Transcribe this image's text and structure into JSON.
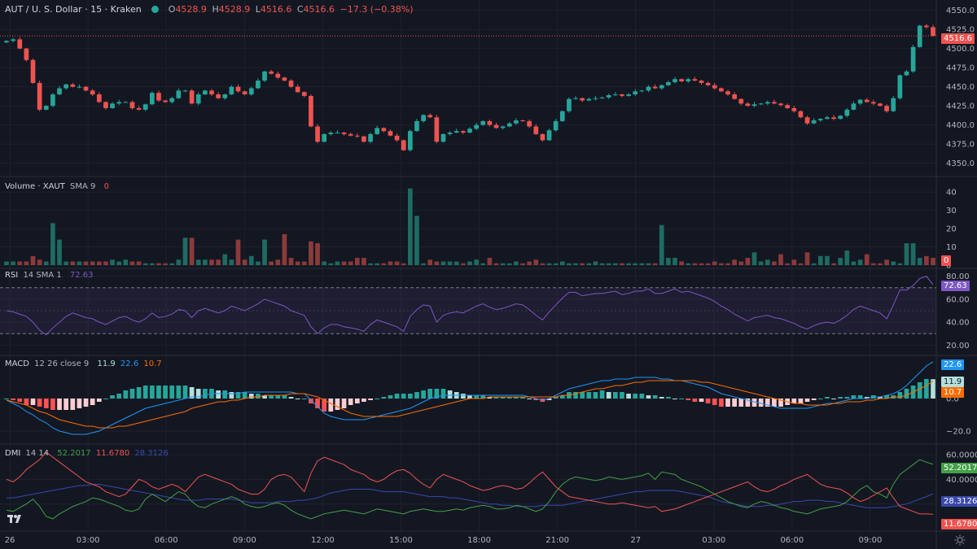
{
  "header": {
    "symbol": "AUT / U. S. Dollar · 15 · Kraken",
    "o_label": "O",
    "o": "4528.9",
    "h_label": "H",
    "h": "4528.9",
    "l_label": "L",
    "l": "4516.6",
    "c_label": "C",
    "c": "4516.6",
    "change": "−17.3 (−0.38%)",
    "status_color": "#26a69a"
  },
  "colors": {
    "up": "#26a69a",
    "down": "#ef5350",
    "bg": "#131722",
    "grid": "#1e222d",
    "axis_text": "#b2b5be"
  },
  "volume_legend": {
    "name": "Volume · XAUT",
    "sma": "SMA 9",
    "value": "0"
  },
  "rsi_legend": {
    "name": "RSI",
    "params": "14 SMA 1",
    "value": "72.63"
  },
  "macd_legend": {
    "name": "MACD",
    "params": "12 26 close 9",
    "v1": "11.9",
    "v2": "22.6",
    "v3": "10.7"
  },
  "dmi_legend": {
    "name": "DMI",
    "params": "14 14",
    "v1": "52.2017",
    "v2": "11.6780",
    "v3": "28.3126"
  },
  "price_tag": "4516.6",
  "volume_tag": "0",
  "rsi_tag": "72.63",
  "macd_tags": [
    "22.6",
    "11.9",
    "10.7"
  ],
  "dmi_tags": [
    "52.2017",
    "28.3126",
    "11.6780"
  ],
  "chart_data": {
    "type": "candlestick",
    "x_ticks": [
      "26",
      "03:00",
      "06:00",
      "09:00",
      "12:00",
      "15:00",
      "18:00",
      "21:00",
      "27",
      "03:00",
      "06:00",
      "09:00"
    ],
    "price_axis": {
      "ticks": [
        "4550.0",
        "4525.0",
        "4500.0",
        "4475.0",
        "4450.0",
        "4425.0",
        "4400.0",
        "4375.0",
        "4350.0"
      ],
      "range": [
        4340,
        4555
      ]
    },
    "closes": [
      4510,
      4512,
      4500,
      4485,
      4455,
      4420,
      4425,
      4440,
      4448,
      4453,
      4450,
      4450,
      4445,
      4440,
      4430,
      4422,
      4428,
      4430,
      4430,
      4422,
      4420,
      4427,
      4442,
      4432,
      4430,
      4435,
      4445,
      4445,
      4428,
      4440,
      4445,
      4440,
      4435,
      4440,
      4450,
      4444,
      4440,
      4448,
      4458,
      4470,
      4467,
      4462,
      4458,
      4450,
      4443,
      4438,
      4398,
      4378,
      4388,
      4390,
      4390,
      4388,
      4386,
      4385,
      4378,
      4388,
      4396,
      4392,
      4386,
      4380,
      4367,
      4392,
      4405,
      4413,
      4410,
      4378,
      4388,
      4390,
      4392,
      4390,
      4395,
      4400,
      4405,
      4400,
      4396,
      4398,
      4402,
      4406,
      4405,
      4398,
      4388,
      4380,
      4393,
      4405,
      4418,
      4434,
      4435,
      4432,
      4434,
      4435,
      4436,
      4439,
      4440,
      4438,
      4440,
      4444,
      4445,
      4450,
      4448,
      4452,
      4456,
      4460,
      4457,
      4460,
      4458,
      4455,
      4452,
      4448,
      4444,
      4440,
      4434,
      4428,
      4425,
      4427,
      4428,
      4430,
      4428,
      4426,
      4422,
      4418,
      4410,
      4402,
      4406,
      4408,
      4410,
      4408,
      4412,
      4420,
      4428,
      4433,
      4430,
      4428,
      4425,
      4418,
      4435,
      4465,
      4470,
      4502,
      4530,
      4528,
      4516.6
    ],
    "volume_axis": {
      "ticks": [
        "40",
        "30",
        "20",
        "10",
        "0"
      ],
      "range": [
        0,
        45
      ]
    },
    "volumes": [
      2,
      2,
      2,
      2,
      5,
      3,
      2,
      23,
      14,
      2,
      2,
      2,
      2,
      2,
      2,
      2,
      3,
      2,
      3,
      2,
      2,
      1,
      1,
      1,
      1,
      1,
      3,
      15,
      15,
      3,
      3,
      3,
      3,
      6,
      3,
      14,
      3,
      5,
      2,
      14,
      2,
      3,
      17,
      4,
      2,
      2,
      13,
      12,
      2,
      1,
      2,
      2,
      2,
      4,
      4,
      1,
      1,
      1,
      2,
      2,
      1,
      42,
      27,
      1,
      3,
      2,
      2,
      2,
      2,
      1,
      2,
      3,
      1,
      4,
      1,
      1,
      1,
      2,
      1,
      2,
      3,
      1,
      1,
      1,
      2,
      1,
      1,
      1,
      1,
      2,
      1,
      1,
      1,
      1,
      1,
      1,
      1,
      1,
      1,
      22,
      4,
      4,
      2,
      1,
      1,
      1,
      1,
      2,
      1,
      1,
      3,
      2,
      4,
      7,
      2,
      3,
      2,
      6,
      1,
      3,
      1,
      7,
      1,
      5,
      5,
      1,
      4,
      8,
      2,
      3,
      6,
      1,
      1,
      3,
      2,
      1,
      12,
      12,
      4,
      5,
      4
    ],
    "rsi_axis": {
      "ticks": [
        "80.00",
        "60.00",
        "40.00",
        "20.00"
      ],
      "range": [
        16,
        84
      ],
      "bands": [
        30,
        70
      ]
    },
    "rsi": [
      50,
      49,
      47,
      45,
      40,
      33,
      29,
      35,
      40,
      45,
      48,
      46,
      44,
      43,
      40,
      38,
      41,
      44,
      45,
      42,
      40,
      43,
      48,
      44,
      45,
      47,
      51,
      50,
      44,
      50,
      52,
      50,
      48,
      50,
      54,
      52,
      50,
      53,
      56,
      60,
      58,
      56,
      54,
      50,
      48,
      46,
      36,
      30,
      35,
      38,
      38,
      36,
      35,
      34,
      32,
      38,
      42,
      40,
      38,
      36,
      32,
      45,
      51,
      55,
      54,
      40,
      46,
      48,
      49,
      48,
      51,
      54,
      56,
      53,
      51,
      52,
      54,
      56,
      55,
      51,
      46,
      42,
      49,
      55,
      61,
      66,
      66,
      63,
      64,
      65,
      65,
      66,
      67,
      64,
      65,
      67,
      67,
      69,
      65,
      65,
      67,
      69,
      66,
      67,
      65,
      63,
      61,
      58,
      54,
      51,
      47,
      44,
      41,
      44,
      45,
      46,
      44,
      43,
      41,
      39,
      36,
      34,
      37,
      39,
      40,
      39,
      42,
      46,
      51,
      54,
      52,
      50,
      48,
      43,
      55,
      68,
      68,
      72,
      78,
      80,
      72.63
    ],
    "macd_axis": {
      "ticks": [
        "0.0",
        "−20.0"
      ],
      "range": [
        -25,
        25
      ]
    },
    "macd": [
      -1,
      -3,
      -5,
      -8,
      -10,
      -13,
      -15,
      -18,
      -20,
      -21,
      -22,
      -22,
      -22,
      -21,
      -20,
      -18,
      -16,
      -14,
      -12,
      -10,
      -8,
      -6,
      -5,
      -4,
      -3,
      -2,
      -1,
      0,
      1,
      1,
      2,
      3,
      3,
      3,
      3,
      3,
      4,
      4,
      4,
      4,
      4,
      4,
      4,
      4,
      3,
      3,
      -1,
      -5,
      -9,
      -11,
      -12,
      -13,
      -13,
      -13,
      -13,
      -12,
      -11,
      -10,
      -9,
      -8,
      -7,
      -6,
      -4,
      -2,
      0,
      1,
      2,
      2,
      2,
      2,
      2,
      2,
      2,
      2,
      2,
      2,
      2,
      2,
      2,
      1,
      0,
      -1,
      0,
      2,
      4,
      6,
      7,
      8,
      9,
      10,
      11,
      11,
      12,
      12,
      12,
      13,
      13,
      13,
      13,
      12,
      12,
      11,
      11,
      10,
      9,
      8,
      7,
      5,
      3,
      2,
      1,
      0,
      -1,
      -2,
      -3,
      -4,
      -5,
      -6,
      -6,
      -6,
      -6,
      -6,
      -5,
      -4,
      -3,
      -3,
      -2,
      -1,
      0,
      0,
      0,
      1,
      1,
      2,
      3,
      5,
      8,
      12,
      16,
      20,
      22.6
    ],
    "signal": [
      -1,
      -2,
      -3,
      -4,
      -6,
      -8,
      -9,
      -11,
      -13,
      -14,
      -15,
      -16,
      -17,
      -17,
      -18,
      -18,
      -18,
      -17,
      -17,
      -16,
      -15,
      -14,
      -13,
      -12,
      -11,
      -10,
      -9,
      -8,
      -6,
      -5,
      -4,
      -3,
      -2,
      -2,
      -1,
      -1,
      0,
      1,
      1,
      2,
      2,
      2,
      2,
      3,
      3,
      3,
      2,
      1,
      -1,
      -3,
      -5,
      -7,
      -9,
      -10,
      -11,
      -11,
      -11,
      -11,
      -11,
      -11,
      -10,
      -9,
      -8,
      -7,
      -6,
      -5,
      -4,
      -3,
      -2,
      -1,
      0,
      0,
      0,
      1,
      1,
      1,
      1,
      1,
      1,
      1,
      1,
      1,
      1,
      1,
      2,
      2,
      3,
      4,
      5,
      6,
      6,
      7,
      8,
      8,
      9,
      10,
      10,
      11,
      11,
      11,
      11,
      11,
      11,
      11,
      11,
      10,
      10,
      9,
      8,
      7,
      6,
      5,
      4,
      3,
      2,
      1,
      0,
      -1,
      -2,
      -3,
      -3,
      -4,
      -4,
      -4,
      -4,
      -3,
      -3,
      -2,
      -2,
      -2,
      -1,
      -1,
      0,
      0,
      1,
      1,
      2,
      4,
      6,
      8,
      10.7
    ],
    "histogram": [
      0,
      -1,
      -2,
      -4,
      -4,
      -5,
      -6,
      -7,
      -7,
      -7,
      -7,
      -6,
      -5,
      -4,
      -2,
      0,
      2,
      3,
      5,
      6,
      7,
      8,
      8,
      8,
      8,
      8,
      8,
      8,
      7,
      6,
      6,
      6,
      5,
      5,
      4,
      4,
      4,
      3,
      3,
      2,
      2,
      2,
      2,
      1,
      0,
      0,
      -3,
      -6,
      -8,
      -8,
      -7,
      -6,
      -4,
      -3,
      -2,
      -1,
      0,
      1,
      2,
      3,
      3,
      3,
      4,
      5,
      6,
      6,
      6,
      5,
      4,
      3,
      2,
      2,
      2,
      1,
      1,
      1,
      1,
      1,
      1,
      0,
      -1,
      -2,
      -1,
      1,
      2,
      4,
      4,
      4,
      4,
      4,
      5,
      4,
      4,
      4,
      3,
      3,
      3,
      2,
      2,
      1,
      1,
      0,
      0,
      -1,
      -2,
      -2,
      -3,
      -4,
      -5,
      -5,
      -5,
      -5,
      -5,
      -5,
      -5,
      -5,
      -5,
      -5,
      -4,
      -3,
      -3,
      -2,
      -1,
      0,
      1,
      0,
      1,
      1,
      2,
      2,
      1,
      2,
      1,
      2,
      2,
      4,
      6,
      8,
      10,
      12,
      11.9
    ],
    "dmi_axis": {
      "ticks": [
        "60.0000",
        "40.0000",
        "20.0000"
      ],
      "range": [
        0,
        66
      ]
    },
    "plus_di": [
      15,
      14,
      17,
      20,
      24,
      18,
      10,
      8,
      12,
      15,
      18,
      20,
      22,
      25,
      24,
      22,
      20,
      18,
      15,
      14,
      16,
      24,
      28,
      25,
      22,
      26,
      30,
      28,
      22,
      18,
      17,
      20,
      22,
      24,
      26,
      24,
      20,
      18,
      17,
      18,
      20,
      21,
      19,
      15,
      12,
      10,
      8,
      10,
      12,
      13,
      14,
      15,
      14,
      13,
      12,
      14,
      16,
      15,
      14,
      13,
      12,
      14,
      15,
      16,
      15,
      14,
      14,
      15,
      16,
      15,
      17,
      18,
      19,
      18,
      16,
      16,
      17,
      19,
      18,
      16,
      14,
      16,
      22,
      30,
      36,
      40,
      42,
      41,
      40,
      39,
      40,
      42,
      41,
      40,
      41,
      42,
      43,
      45,
      40,
      46,
      45,
      44,
      40,
      38,
      36,
      34,
      31,
      28,
      25,
      22,
      20,
      18,
      17,
      20,
      22,
      21,
      19,
      17,
      16,
      14,
      13,
      12,
      14,
      16,
      17,
      18,
      19,
      22,
      27,
      32,
      35,
      30,
      28,
      25,
      36,
      44,
      48,
      52,
      56,
      54,
      52.2017
    ],
    "minus_di": [
      40,
      38,
      42,
      48,
      52,
      56,
      62,
      58,
      54,
      50,
      46,
      42,
      38,
      36,
      34,
      30,
      28,
      26,
      28,
      34,
      40,
      38,
      34,
      32,
      34,
      36,
      34,
      30,
      36,
      42,
      44,
      42,
      40,
      38,
      36,
      32,
      30,
      28,
      28,
      32,
      40,
      43,
      44,
      42,
      36,
      30,
      45,
      55,
      58,
      56,
      54,
      52,
      48,
      46,
      44,
      40,
      38,
      40,
      44,
      47,
      48,
      45,
      40,
      36,
      33,
      40,
      44,
      42,
      40,
      38,
      35,
      33,
      31,
      32,
      34,
      35,
      34,
      32,
      33,
      37,
      42,
      46,
      40,
      34,
      30,
      26,
      25,
      24,
      23,
      22,
      21,
      20,
      20,
      21,
      20,
      19,
      18,
      17,
      18,
      14,
      15,
      16,
      18,
      20,
      22,
      24,
      26,
      28,
      30,
      32,
      34,
      36,
      38,
      34,
      31,
      30,
      32,
      35,
      37,
      40,
      42,
      44,
      40,
      36,
      34,
      33,
      32,
      29,
      25,
      22,
      24,
      27,
      30,
      33,
      25,
      18,
      16,
      14,
      12,
      12,
      11.678
    ],
    "adx": [
      25,
      25,
      26,
      27,
      28,
      29,
      30,
      31,
      32,
      33,
      34,
      35,
      35,
      36,
      36,
      35,
      34,
      33,
      32,
      31,
      30,
      29,
      28,
      27,
      26,
      25,
      24,
      23,
      23,
      23,
      24,
      24,
      24,
      24,
      24,
      23,
      22,
      21,
      21,
      21,
      21,
      22,
      22,
      22,
      23,
      23,
      24,
      25,
      27,
      29,
      30,
      31,
      32,
      32,
      32,
      32,
      31,
      30,
      30,
      30,
      30,
      29,
      28,
      27,
      26,
      26,
      26,
      25,
      25,
      24,
      23,
      22,
      21,
      20,
      20,
      19,
      19,
      18,
      18,
      18,
      18,
      19,
      19,
      19,
      19,
      20,
      21,
      22,
      23,
      24,
      25,
      26,
      27,
      28,
      29,
      30,
      30,
      31,
      31,
      31,
      31,
      31,
      30,
      29,
      28,
      27,
      26,
      24,
      22,
      21,
      20,
      19,
      18,
      18,
      18,
      19,
      19,
      20,
      21,
      22,
      22,
      23,
      23,
      23,
      22,
      22,
      21,
      20,
      19,
      18,
      17,
      17,
      17,
      17,
      18,
      19,
      20,
      22,
      24,
      26,
      28.3126
    ]
  }
}
